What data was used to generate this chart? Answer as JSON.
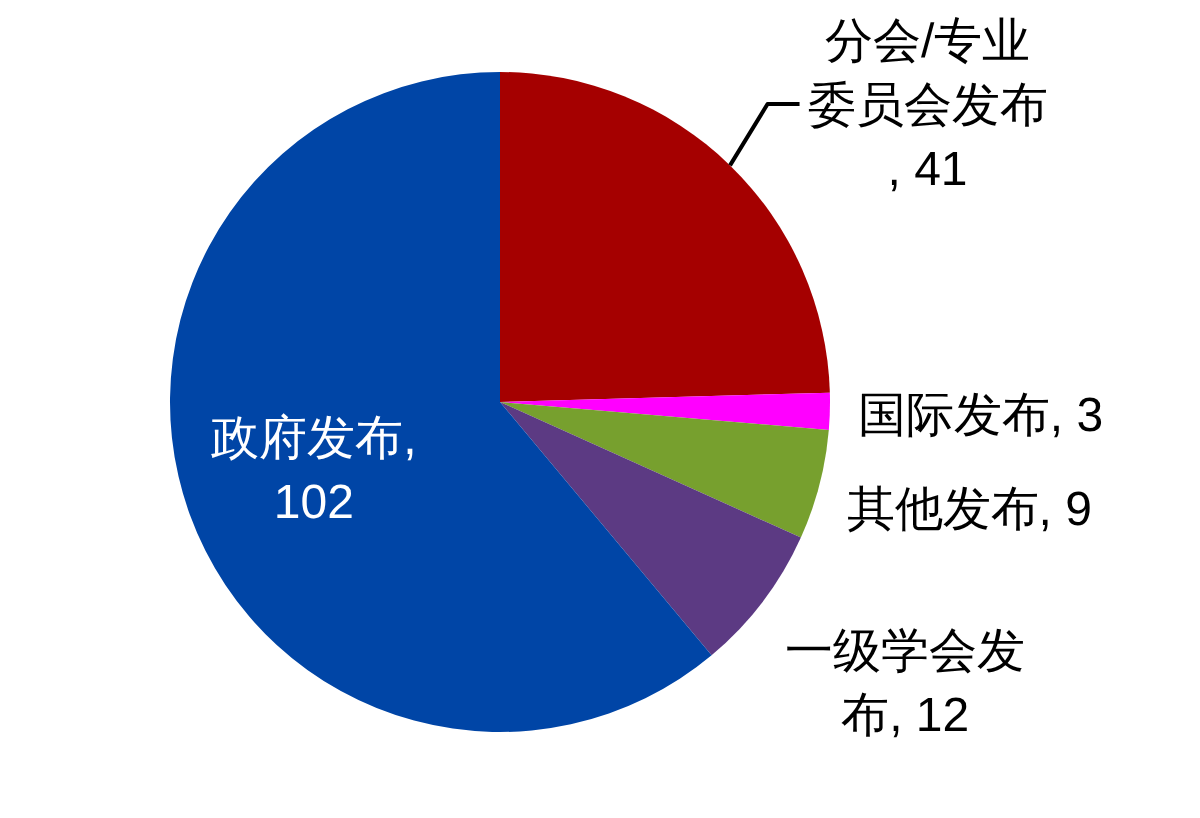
{
  "chart_data": {
    "type": "pie",
    "categories": [
      "分会/专业委员会发布",
      "国际发布",
      "其他发布",
      "一级学会发布",
      "政府发布"
    ],
    "values": [
      41,
      3,
      9,
      12,
      102
    ],
    "value_labels": [
      ", 41",
      ", 3",
      ", 9",
      ", 12",
      ", 102"
    ],
    "colors": [
      "#a50000",
      "#ff00ff",
      "#77a02e",
      "#5c3a83",
      "#0045a6"
    ]
  }
}
